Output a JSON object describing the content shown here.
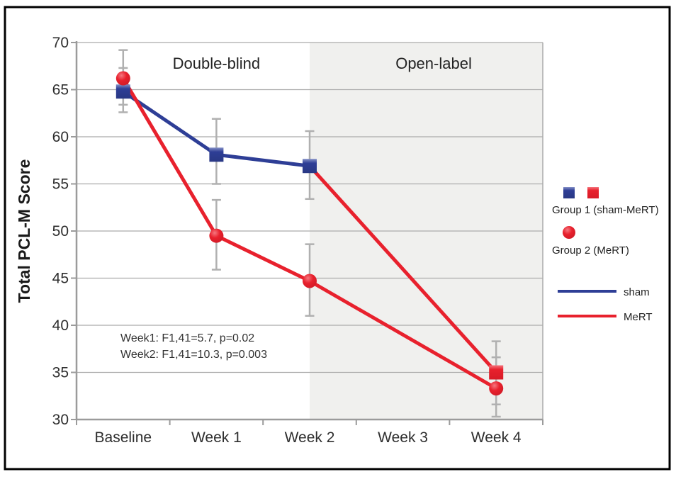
{
  "chart_data": {
    "type": "line",
    "title": "",
    "xlabel": "",
    "ylabel": "Total PCL-M Score",
    "ylim": [
      30,
      70
    ],
    "yticks": [
      30,
      35,
      40,
      45,
      50,
      55,
      60,
      65,
      70
    ],
    "categories": [
      "Baseline",
      "Week 1",
      "Week 2",
      "Week 3",
      "Week 4"
    ],
    "grid": "horizontal",
    "legend_position": "right-outside",
    "phases": [
      {
        "label": "Double-blind",
        "u_from": -0.5,
        "u_to": 2,
        "bg": "#ffffff",
        "label_at": 1.0
      },
      {
        "label": "Open-label",
        "u_from": 2,
        "u_to": 4.5,
        "bg": "#f0f0ee",
        "label_at": 3.33
      }
    ],
    "series": [
      {
        "name": "sham",
        "marker": "square",
        "points": [
          {
            "x": 0,
            "y": 64.8,
            "lo": 62.6,
            "hi": 67.3,
            "color": "blue"
          },
          {
            "x": 1,
            "y": 58.1,
            "lo": 55.0,
            "hi": 61.9,
            "color": "blue"
          },
          {
            "x": 2,
            "y": 56.9,
            "lo": 53.4,
            "hi": 60.6,
            "color": "blue"
          },
          {
            "x": 4,
            "y": 35.0,
            "lo": 31.6,
            "hi": 38.3,
            "color": "red"
          }
        ],
        "segments": [
          {
            "from": 0,
            "to": 2,
            "color": "blue"
          },
          {
            "from": 2,
            "to": 3,
            "color": "red"
          }
        ]
      },
      {
        "name": "MeRT",
        "marker": "circle",
        "points": [
          {
            "x": 0,
            "y": 66.2,
            "lo": 63.4,
            "hi": 69.2,
            "color": "red"
          },
          {
            "x": 1,
            "y": 49.5,
            "lo": 45.9,
            "hi": 53.3,
            "color": "red"
          },
          {
            "x": 2,
            "y": 44.7,
            "lo": 41.0,
            "hi": 48.6,
            "color": "red"
          },
          {
            "x": 4,
            "y": 33.3,
            "lo": 30.3,
            "hi": 36.6,
            "color": "red"
          }
        ],
        "segments": [
          {
            "from": 0,
            "to": 3,
            "color": "red"
          }
        ]
      }
    ],
    "colors": {
      "blue": "#2e3e96",
      "red": "#e8212d",
      "grid": "#ababab",
      "axis": "#9b9b9b",
      "error": "#b0b0b0",
      "shade": "#f0f0ee",
      "text": "#2e2e2e"
    },
    "annotations": {
      "line1": "Week1: F1,41=5.7, p=0.02",
      "line2": "Week2: F1,41=10.3, p=0.003"
    },
    "legend": {
      "group1_label": "Group 1 (sham-MeRT)",
      "group2_label": "Group 2 (MeRT)",
      "sham_label": "sham",
      "mert_label": "MeRT"
    }
  }
}
